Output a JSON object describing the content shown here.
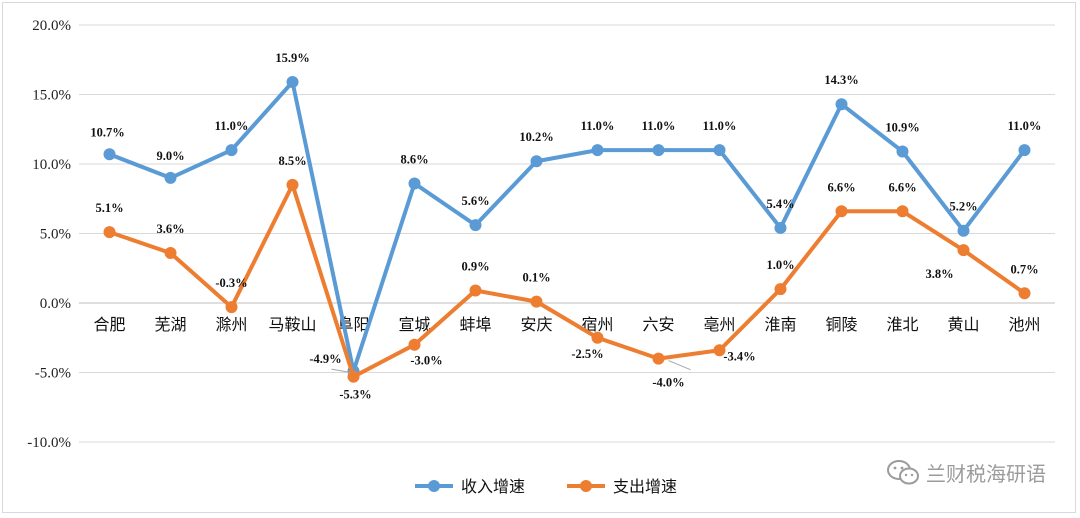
{
  "watermark": {
    "text": "兰财税海研语",
    "icon": "wechat-icon"
  },
  "chart_data": {
    "type": "line",
    "categories": [
      "合肥",
      "芜湖",
      "滁州",
      "马鞍山",
      "阜阳",
      "宣城",
      "蚌埠",
      "安庆",
      "宿州",
      "六安",
      "亳州",
      "淮南",
      "铜陵",
      "淮北",
      "黄山",
      "池州"
    ],
    "ylim": [
      -10,
      20
    ],
    "yticks": [
      -10,
      -5,
      0,
      5,
      10,
      15,
      20
    ],
    "ytick_labels": [
      "-10.0%",
      "-5.0%",
      "0.0%",
      "5.0%",
      "10.0%",
      "15.0%",
      "20.0%"
    ],
    "grid": "horizontal",
    "legend": "bottom-center",
    "series": [
      {
        "name": "收入增速",
        "color": "#5b9bd5",
        "values": [
          10.7,
          9.0,
          11.0,
          15.9,
          -4.9,
          8.6,
          5.6,
          10.2,
          11.0,
          11.0,
          11.0,
          5.4,
          14.3,
          10.9,
          5.2,
          11.0
        ],
        "labels": [
          "10.7%",
          "9.0%",
          "11.0%",
          "15.9%",
          "-4.9%",
          "8.6%",
          "5.6%",
          "10.2%",
          "11.0%",
          "11.0%",
          "11.0%",
          "5.4%",
          "14.3%",
          "10.9%",
          "5.2%",
          "11.0%"
        ]
      },
      {
        "name": "支出增速",
        "color": "#ed7d31",
        "values": [
          5.1,
          3.6,
          -0.3,
          8.5,
          -5.3,
          -3.0,
          0.9,
          0.1,
          -2.5,
          -4.0,
          -3.4,
          1.0,
          6.6,
          6.6,
          3.8,
          0.7
        ],
        "labels": [
          "5.1%",
          "3.6%",
          "-0.3%",
          "8.5%",
          "-5.3%",
          "-3.0%",
          "0.9%",
          "0.1%",
          "-2.5%",
          "-4.0%",
          "-3.4%",
          "1.0%",
          "6.6%",
          "6.6%",
          "3.8%",
          "0.7%"
        ]
      }
    ]
  }
}
